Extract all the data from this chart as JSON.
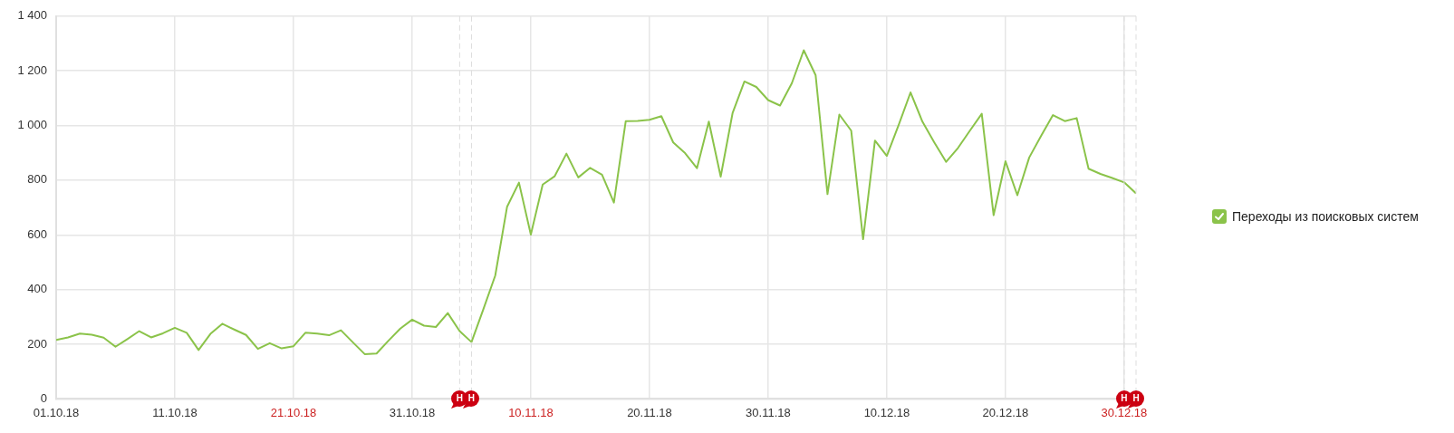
{
  "chart_data": {
    "type": "line",
    "x": [
      "--10-01",
      "--10-02",
      "--10-03",
      "--10-04",
      "--10-05",
      "--10-06",
      "--10-07",
      "--10-08",
      "--10-09",
      "--10-10",
      "--10-11",
      "--10-12",
      "--10-13",
      "--10-14",
      "--10-15",
      "--10-16",
      "--10-17",
      "--10-18",
      "--10-19",
      "--10-20",
      "--10-21",
      "--10-22",
      "--10-23",
      "--10-24",
      "--10-25",
      "--10-26",
      "--10-27",
      "--10-28",
      "--10-29",
      "--10-30",
      "--10-31",
      "--11-01",
      "--11-02",
      "--11-03",
      "--11-04",
      "--11-05",
      "--11-06",
      "--11-07",
      "--11-08",
      "--11-09",
      "--11-10",
      "--11-11",
      "--11-12",
      "--11-13",
      "--11-14",
      "--11-15",
      "--11-16",
      "--11-17",
      "--11-18",
      "--11-19",
      "--11-20",
      "--11-21",
      "--11-22",
      "--11-23",
      "--11-24",
      "--11-25",
      "--11-26",
      "--11-27",
      "--11-28",
      "--11-29",
      "--11-30",
      "--12-01",
      "--12-02",
      "--12-03",
      "--12-04",
      "--12-05",
      "--12-06",
      "--12-07",
      "--12-08",
      "--12-09",
      "--12-10",
      "--12-11",
      "--12-12",
      "--12-13",
      "--12-14",
      "--12-15",
      "--12-16",
      "--12-17",
      "--12-18",
      "--12-19",
      "--12-20",
      "--12-21",
      "--12-22",
      "--12-23",
      "--12-24",
      "--12-25",
      "--12-26",
      "--12-27",
      "--12-28",
      "--12-29",
      "--12-30",
      "--12-31"
    ],
    "series": [
      {
        "name": "Переходы из поисковых систем",
        "color": "#8bc34a",
        "values": [
          216,
          225,
          239,
          235,
          224,
          191,
          219,
          248,
          225,
          240,
          260,
          242,
          179,
          238,
          275,
          254,
          234,
          183,
          204,
          185,
          193,
          242,
          239,
          233,
          251,
          207,
          164,
          166,
          213,
          257,
          290,
          268,
          263,
          314,
          248,
          208,
          328,
          451,
          703,
          791,
          601,
          784,
          814,
          897,
          810,
          845,
          820,
          718,
          1016,
          1017,
          1021,
          1034,
          938,
          899,
          844,
          1014,
          813,
          1045,
          1161,
          1141,
          1093,
          1073,
          1155,
          1275,
          1184,
          749,
          1040,
          981,
          584,
          945,
          889,
          1002,
          1121,
          1014,
          938,
          867,
          918,
          981,
          1043,
          672,
          869,
          745,
          883,
          962,
          1038,
          1016,
          1027,
          842,
          823,
          808,
          792,
          752
        ]
      }
    ],
    "xlim": [
      "--10-01",
      "--12-31"
    ],
    "xticks": [
      {
        "value": "--10-01",
        "label": "01.10.18"
      },
      {
        "value": "--10-11",
        "label": "11.10.18"
      },
      {
        "value": "--10-21",
        "label": "21.10.18"
      },
      {
        "value": "--10-31",
        "label": "31.10.18"
      },
      {
        "value": "--11-10",
        "label": "10.11.18"
      },
      {
        "value": "--11-20",
        "label": "20.11.18"
      },
      {
        "value": "--11-30",
        "label": "30.11.18"
      },
      {
        "value": "--12-10",
        "label": "10.12.18"
      },
      {
        "value": "--12-20",
        "label": "20.12.18"
      },
      {
        "value": "--12-30",
        "label": "30.12.18"
      }
    ],
    "ylim": [
      0,
      1400
    ],
    "yticks": [
      0,
      200,
      400,
      600,
      800,
      {
        "value": 1000,
        "label": "1 000"
      },
      {
        "value": 1200,
        "label": "1 200"
      },
      {
        "value": 1400,
        "label": "1 400"
      }
    ],
    "ref_lines": [
      {
        "axis": "x",
        "value": "--11-04",
        "label": "Н",
        "color": "#dddddd",
        "line_style": "dashed"
      },
      {
        "axis": "x",
        "value": "--11-05",
        "label": "Н",
        "color": "#dddddd",
        "line_style": "dashed"
      },
      {
        "axis": "x",
        "value": "--12-30",
        "label": "Н",
        "color": "#dddddd",
        "line_style": "dashed"
      },
      {
        "axis": "x",
        "value": "--12-31",
        "label": "Н",
        "color": "#dddddd",
        "line_style": "dashed"
      }
    ],
    "grid": true,
    "legend": "right",
    "marker": "none",
    "line_style": "solid"
  }
}
